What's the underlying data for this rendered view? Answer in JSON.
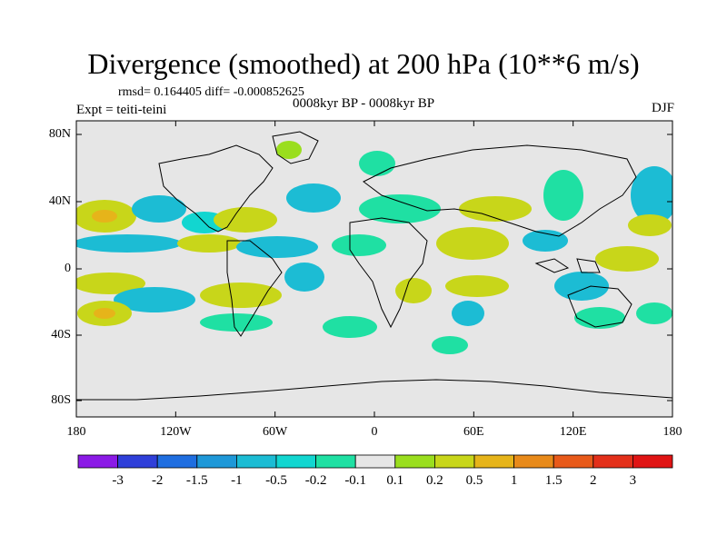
{
  "title": "Divergence (smoothed) at 200 hPa (10**6 m/s)",
  "stats_line": "rmsd= 0.164405 diff= -0.000852625",
  "experiment_label": "Expt = teiti-teini",
  "time_label": "0008kyr BP - 0008kyr BP",
  "season_label": "DJF",
  "lat_labels": [
    "80N",
    "40N",
    "0",
    "40S",
    "80S"
  ],
  "lon_labels": [
    "180",
    "120W",
    "60W",
    "0",
    "60E",
    "120E",
    "180"
  ],
  "colorbar": {
    "labels": [
      "-3",
      "-2",
      "-1.5",
      "-1",
      "-0.5",
      "-0.2",
      "-0.1",
      "0.1",
      "0.2",
      "0.5",
      "1",
      "1.5",
      "2",
      "3"
    ],
    "colors": [
      "#8b1ae6",
      "#2f3fd9",
      "#1f6ee0",
      "#1e98d8",
      "#1cbcd4",
      "#12d6d0",
      "#1fe0a3",
      "#e6e6e6",
      "#9ade1e",
      "#c8d61a",
      "#e6b41a",
      "#e88a1a",
      "#e85a1a",
      "#e3301a",
      "#e01414"
    ]
  },
  "map_colors": {
    "background": "#e6e6e6",
    "coast": "#000000"
  }
}
